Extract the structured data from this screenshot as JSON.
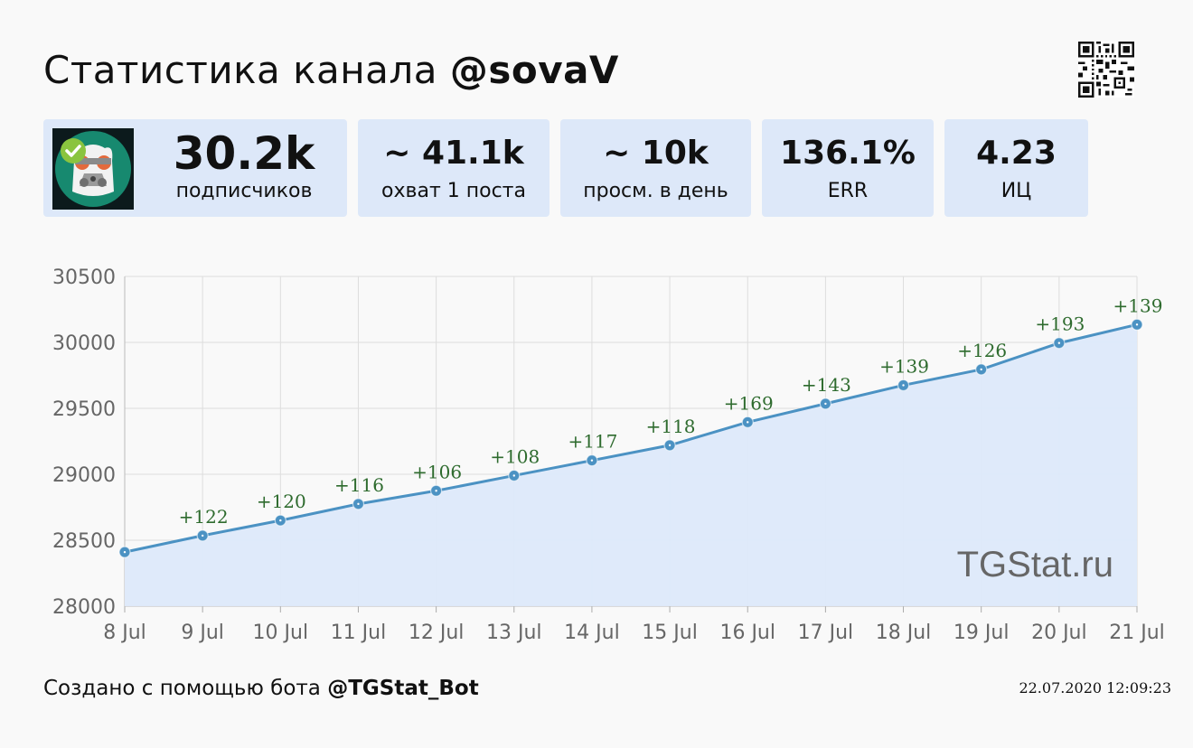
{
  "header": {
    "title_prefix": "Статистика канала ",
    "channel": "@sovaV"
  },
  "icons": {
    "qr": "qr-code-icon",
    "avatar": "channel-avatar",
    "verified": "verified-check-icon"
  },
  "stats": {
    "subscribers": {
      "value": "30.2k",
      "label": "подписчиков"
    },
    "reach": {
      "value": "~ 41.1k",
      "label": "охват 1 поста"
    },
    "daily_views": {
      "value": "~ 10k",
      "label": "просм. в день"
    },
    "err": {
      "value": "136.1%",
      "label": "ERR"
    },
    "ic": {
      "value": "4.23",
      "label": "ИЦ"
    }
  },
  "colors": {
    "card_bg": "#dde8f9",
    "line": "#4b92c3",
    "area": "#dde9fa",
    "delta_label": "#2e6b2e",
    "grid": "#dddddd",
    "tick_text": "#666666"
  },
  "watermark": "TGStat.ru",
  "footer": {
    "created_prefix": "Создано с помощью бота ",
    "bot": "@TGStat_Bot",
    "timestamp": "22.07.2020 12:09:23"
  },
  "chart_data": {
    "type": "area",
    "title": "",
    "xlabel": "",
    "ylabel": "",
    "categories": [
      "8 Jul",
      "9 Jul",
      "10 Jul",
      "11 Jul",
      "12 Jul",
      "13 Jul",
      "14 Jul",
      "15 Jul",
      "16 Jul",
      "17 Jul",
      "18 Jul",
      "19 Jul",
      "20 Jul",
      "21 Jul"
    ],
    "values": [
      28410,
      28535,
      28650,
      28775,
      28875,
      28990,
      29105,
      29220,
      29395,
      29535,
      29675,
      29795,
      29995,
      30135
    ],
    "deltas": [
      "",
      "+122",
      "+120",
      "+116",
      "+106",
      "+108",
      "+117",
      "+118",
      "+169",
      "+143",
      "+139",
      "+126",
      "+193",
      "+139"
    ],
    "ylim": [
      28000,
      30500
    ],
    "yticks": [
      28000,
      28500,
      29000,
      29500,
      30000,
      30500
    ],
    "grid": true,
    "legend": "none"
  }
}
